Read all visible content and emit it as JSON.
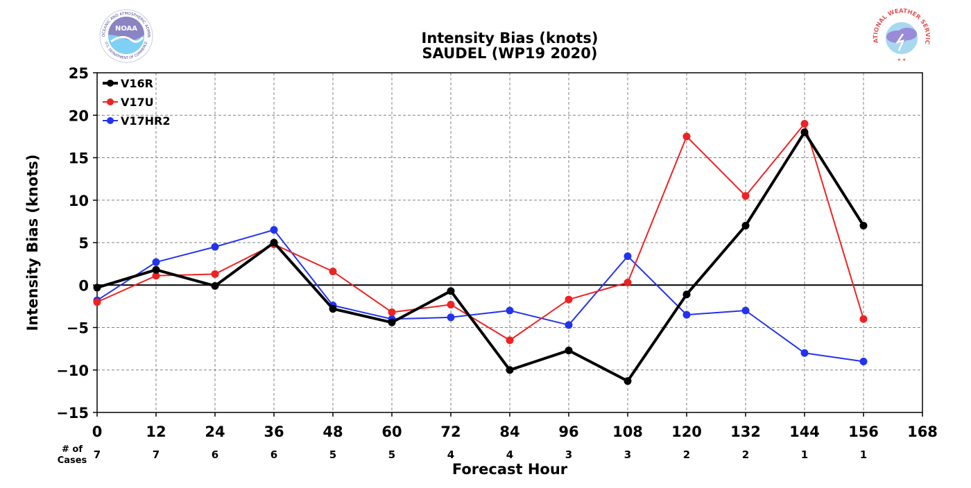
{
  "chart_data": {
    "type": "line",
    "title": "Intensity Bias (knots)",
    "subtitle": "SAUDEL (WP19 2020)",
    "xlabel": "Forecast Hour",
    "ylabel": "Intensity Bias (knots)",
    "xlim": [
      0,
      168
    ],
    "ylim": [
      -15,
      25
    ],
    "x_ticks": [
      0,
      12,
      24,
      36,
      48,
      60,
      72,
      84,
      96,
      108,
      120,
      132,
      144,
      156,
      168
    ],
    "y_ticks": [
      -15,
      -10,
      -5,
      0,
      5,
      10,
      15,
      20,
      25
    ],
    "x_tick_labels": [
      "0",
      "12",
      "24",
      "36",
      "48",
      "60",
      "72",
      "84",
      "96",
      "108",
      "120",
      "132",
      "144",
      "156",
      "168"
    ],
    "y_tick_labels": [
      "−15",
      "−10",
      "−5",
      "0",
      "5",
      "10",
      "15",
      "20",
      "25"
    ],
    "grid": true,
    "legend_position": "top-left",
    "x": [
      0,
      12,
      24,
      36,
      48,
      60,
      72,
      84,
      96,
      108,
      120,
      132,
      144,
      156
    ],
    "series": [
      {
        "name": "V16R",
        "color": "#000000",
        "width": 4,
        "values": [
          -0.3,
          1.8,
          -0.1,
          5.0,
          -2.8,
          -4.4,
          -0.7,
          -10.0,
          -7.7,
          -11.3,
          -1.1,
          7.0,
          18.0,
          7.0
        ]
      },
      {
        "name": "V17U",
        "color": "#ee2222",
        "width": 2,
        "values": [
          -2.0,
          1.1,
          1.3,
          4.8,
          1.6,
          -3.2,
          -2.3,
          -6.5,
          -1.7,
          0.3,
          17.5,
          10.5,
          19.0,
          -4.0
        ]
      },
      {
        "name": "V17HR2",
        "color": "#2233ee",
        "width": 2,
        "values": [
          -1.8,
          2.7,
          4.5,
          6.5,
          -2.4,
          -4.0,
          -3.8,
          -3.0,
          -4.7,
          3.4,
          -3.5,
          -3.0,
          -8.0,
          -9.0
        ]
      }
    ],
    "cases_label_line1": "# of",
    "cases_label_line2": "Cases",
    "cases": [
      "7",
      "7",
      "6",
      "6",
      "5",
      "5",
      "4",
      "4",
      "3",
      "3",
      "2",
      "2",
      "1",
      "1"
    ]
  },
  "logos": {
    "noaa": {
      "text": "NOAA",
      "ring_text": "NATIONAL OCEANIC AND ATMOSPHERIC ADMINISTRATION",
      "bottom_text": "U.S. DEPARTMENT OF COMMERCE"
    },
    "nws": {
      "ring_text": "NATIONAL WEATHER SERVICE"
    }
  }
}
